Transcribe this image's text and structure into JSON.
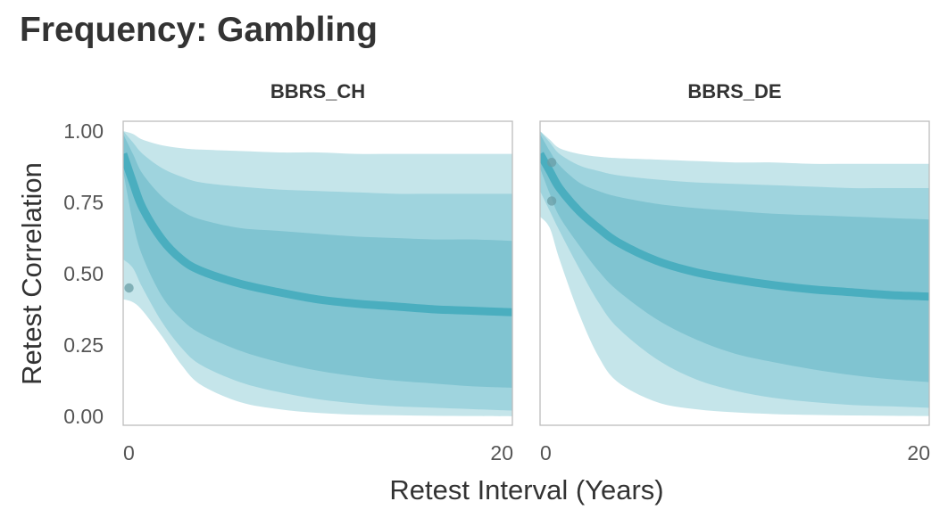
{
  "title": "Frequency: Gambling",
  "chart_data": {
    "type": "area",
    "title": "Frequency: Gambling",
    "xlabel": "Retest Interval (Years)",
    "ylabel": "Retest Correlation",
    "xlim": [
      0,
      20
    ],
    "ylim": [
      0,
      1
    ],
    "x_ticks": [
      0,
      20
    ],
    "x_tick_labels": [
      "0",
      "20"
    ],
    "y_ticks": [
      0,
      0.25,
      0.5,
      0.75,
      1
    ],
    "y_tick_labels": [
      "0.00",
      "0.25",
      "0.50",
      "0.75",
      "1.00"
    ],
    "grid": false,
    "legend": "none",
    "colors": {
      "outer_band": "#c5e5ea",
      "middle_band": "#9fd4de",
      "inner_band": "#80c4d1",
      "median_line": "#4aaebf",
      "points": "#6a9ea6"
    },
    "panels": [
      {
        "title": "BBRS_CH",
        "x": [
          0,
          0.5,
          1,
          2,
          3,
          4,
          6,
          8,
          10,
          12,
          14,
          16,
          18,
          20
        ],
        "median": [
          0.92,
          0.82,
          0.73,
          0.62,
          0.55,
          0.51,
          0.465,
          0.435,
          0.41,
          0.395,
          0.385,
          0.375,
          0.37,
          0.365
        ],
        "band_inner": {
          "upper": [
            0.99,
            0.92,
            0.85,
            0.77,
            0.72,
            0.69,
            0.66,
            0.65,
            0.64,
            0.63,
            0.625,
            0.62,
            0.62,
            0.615
          ],
          "lower": [
            0.86,
            0.68,
            0.56,
            0.42,
            0.34,
            0.29,
            0.23,
            0.19,
            0.16,
            0.14,
            0.125,
            0.115,
            0.105,
            0.1
          ]
        },
        "band_middle": {
          "upper": [
            1.0,
            0.96,
            0.92,
            0.87,
            0.84,
            0.82,
            0.805,
            0.795,
            0.79,
            0.785,
            0.78,
            0.78,
            0.78,
            0.78
          ],
          "lower": [
            0.55,
            0.52,
            0.45,
            0.33,
            0.24,
            0.18,
            0.12,
            0.085,
            0.06,
            0.045,
            0.035,
            0.03,
            0.025,
            0.02
          ]
        },
        "band_outer": {
          "upper": [
            1.0,
            0.99,
            0.97,
            0.95,
            0.94,
            0.935,
            0.93,
            0.925,
            0.925,
            0.92,
            0.92,
            0.92,
            0.92,
            0.92
          ],
          "lower": [
            0.41,
            0.4,
            0.37,
            0.28,
            0.18,
            0.11,
            0.05,
            0.025,
            0.012,
            0.006,
            0.004,
            0.002,
            0.001,
            0.0
          ]
        },
        "points": [
          {
            "x": 0.3,
            "y": 0.45
          }
        ]
      },
      {
        "title": "BBRS_DE",
        "x": [
          0,
          0.5,
          1,
          2,
          3,
          4,
          6,
          8,
          10,
          12,
          14,
          16,
          18,
          20
        ],
        "median": [
          0.92,
          0.86,
          0.8,
          0.72,
          0.66,
          0.61,
          0.545,
          0.505,
          0.48,
          0.46,
          0.445,
          0.435,
          0.425,
          0.42
        ],
        "band_inner": {
          "upper": [
            0.99,
            0.93,
            0.88,
            0.82,
            0.79,
            0.77,
            0.745,
            0.73,
            0.72,
            0.71,
            0.705,
            0.7,
            0.695,
            0.69
          ],
          "lower": [
            0.87,
            0.78,
            0.7,
            0.6,
            0.51,
            0.44,
            0.34,
            0.27,
            0.22,
            0.19,
            0.165,
            0.145,
            0.13,
            0.12
          ]
        },
        "band_middle": {
          "upper": [
            1.0,
            0.96,
            0.92,
            0.88,
            0.86,
            0.845,
            0.83,
            0.82,
            0.815,
            0.81,
            0.805,
            0.8,
            0.8,
            0.8
          ],
          "lower": [
            0.79,
            0.72,
            0.65,
            0.52,
            0.4,
            0.31,
            0.2,
            0.13,
            0.09,
            0.065,
            0.05,
            0.04,
            0.035,
            0.03
          ]
        },
        "band_outer": {
          "upper": [
            1.0,
            0.97,
            0.94,
            0.92,
            0.91,
            0.905,
            0.9,
            0.895,
            0.89,
            0.89,
            0.885,
            0.885,
            0.885,
            0.885
          ],
          "lower": [
            0.7,
            0.66,
            0.55,
            0.36,
            0.21,
            0.12,
            0.05,
            0.025,
            0.014,
            0.008,
            0.005,
            0.003,
            0.002,
            0.001
          ]
        },
        "points": [
          {
            "x": 0.6,
            "y": 0.89
          },
          {
            "x": 0.6,
            "y": 0.755
          }
        ]
      }
    ]
  }
}
